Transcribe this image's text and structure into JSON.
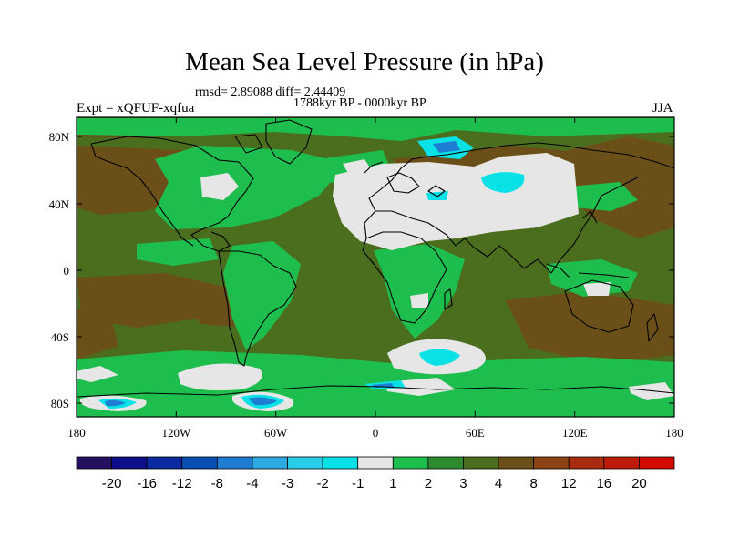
{
  "title": "Mean Sea Level Pressure (in hPa)",
  "stats": "rmsd= 2.89088 diff= 2.44409",
  "period": "1788kyr BP - 0000kyr BP",
  "experiment": "Expt = xQFUF-xqfua",
  "season": "JJA",
  "map": {
    "lat_ticks": [
      "80N",
      "40N",
      "0",
      "40S",
      "80S"
    ],
    "lon_ticks": [
      "180",
      "120W",
      "60W",
      "0",
      "60E",
      "120E",
      "180"
    ]
  },
  "colorbar": {
    "labels": [
      "-20",
      "-16",
      "-12",
      "-8",
      "-4",
      "-3",
      "-2",
      "-1",
      "1",
      "2",
      "3",
      "4",
      "8",
      "12",
      "16",
      "20"
    ],
    "colors": [
      "#24105e",
      "#0e0e8a",
      "#0a2aa0",
      "#0a4eb4",
      "#1e7cd2",
      "#2ca8e2",
      "#28cde8",
      "#08e2e6",
      "#e6e6e6",
      "#1ebe4e",
      "#2e8a2e",
      "#4b6e1e",
      "#6a5018",
      "#8c4414",
      "#a82c10",
      "#be1a0a",
      "#d20a00"
    ]
  },
  "palette": {
    "land_neutral": "#e6e6e6",
    "green": "#1ebe4e",
    "olive": "#4b6e1e",
    "brown": "#6a5018",
    "cyan": "#08e2e6",
    "blue": "#1e7cd2"
  }
}
